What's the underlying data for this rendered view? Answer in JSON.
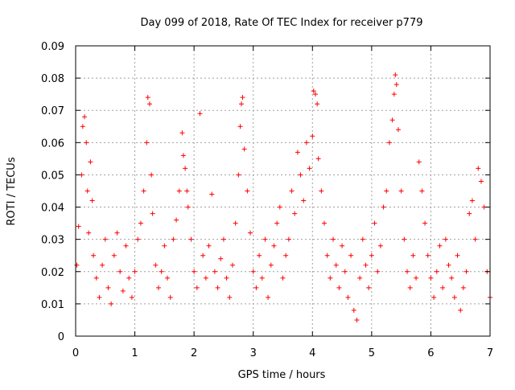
{
  "chart_data": {
    "type": "scatter",
    "title": "Day 099 of 2018, Rate Of TEC Index for receiver p779",
    "xlabel": "GPS time / hours",
    "ylabel": "ROTI / TECUs",
    "xlim": [
      0,
      7
    ],
    "ylim": [
      0,
      0.09
    ],
    "xticks": [
      0,
      1,
      2,
      3,
      4,
      5,
      6,
      7
    ],
    "xtick_labels": [
      "0",
      "1",
      "2",
      "3",
      "4",
      "5",
      "6",
      "7"
    ],
    "yticks": [
      0,
      0.01,
      0.02,
      0.03,
      0.04,
      0.05,
      0.06,
      0.07,
      0.08,
      0.09
    ],
    "ytick_labels": [
      "0",
      "0.01",
      "0.02",
      "0.03",
      "0.04",
      "0.05",
      "0.06",
      "0.07",
      "0.08",
      "0.09"
    ],
    "grid": true,
    "marker": "plus",
    "color": "#ff0000",
    "series": [
      {
        "name": "ROTI",
        "x": [
          0.02,
          0.05,
          0.1,
          0.12,
          0.15,
          0.18,
          0.2,
          0.22,
          0.25,
          0.28,
          0.3,
          0.35,
          0.4,
          0.45,
          0.5,
          0.55,
          0.6,
          0.65,
          0.7,
          0.75,
          0.8,
          0.85,
          0.9,
          0.95,
          1.0,
          1.05,
          1.1,
          1.15,
          1.2,
          1.22,
          1.25,
          1.28,
          1.3,
          1.35,
          1.4,
          1.45,
          1.5,
          1.55,
          1.6,
          1.65,
          1.7,
          1.75,
          1.8,
          1.82,
          1.85,
          1.88,
          1.9,
          1.95,
          2.0,
          2.05,
          2.1,
          2.15,
          2.2,
          2.25,
          2.3,
          2.35,
          2.4,
          2.45,
          2.5,
          2.55,
          2.6,
          2.65,
          2.7,
          2.75,
          2.78,
          2.8,
          2.82,
          2.85,
          2.9,
          2.95,
          3.0,
          3.05,
          3.1,
          3.15,
          3.2,
          3.25,
          3.3,
          3.35,
          3.4,
          3.45,
          3.5,
          3.55,
          3.6,
          3.65,
          3.7,
          3.75,
          3.8,
          3.85,
          3.9,
          3.95,
          4.0,
          4.02,
          4.05,
          4.08,
          4.1,
          4.15,
          4.2,
          4.25,
          4.3,
          4.35,
          4.4,
          4.45,
          4.5,
          4.55,
          4.6,
          4.65,
          4.7,
          4.75,
          4.8,
          4.85,
          4.9,
          4.95,
          5.0,
          5.05,
          5.1,
          5.15,
          5.2,
          5.25,
          5.3,
          5.35,
          5.38,
          5.4,
          5.42,
          5.45,
          5.5,
          5.55,
          5.6,
          5.65,
          5.7,
          5.75,
          5.8,
          5.85,
          5.9,
          5.95,
          6.0,
          6.05,
          6.1,
          6.15,
          6.2,
          6.25,
          6.3,
          6.35,
          6.4,
          6.45,
          6.5,
          6.55,
          6.6,
          6.65,
          6.7,
          6.75,
          6.8,
          6.85,
          6.9,
          6.95,
          7.0
        ],
        "y": [
          0.022,
          0.034,
          0.05,
          0.065,
          0.068,
          0.06,
          0.045,
          0.032,
          0.054,
          0.042,
          0.025,
          0.018,
          0.012,
          0.022,
          0.03,
          0.015,
          0.01,
          0.025,
          0.032,
          0.02,
          0.014,
          0.028,
          0.018,
          0.012,
          0.02,
          0.03,
          0.035,
          0.045,
          0.06,
          0.074,
          0.072,
          0.05,
          0.038,
          0.022,
          0.015,
          0.02,
          0.028,
          0.018,
          0.012,
          0.03,
          0.036,
          0.045,
          0.063,
          0.056,
          0.052,
          0.045,
          0.04,
          0.03,
          0.02,
          0.015,
          0.069,
          0.025,
          0.018,
          0.028,
          0.044,
          0.02,
          0.015,
          0.024,
          0.03,
          0.018,
          0.012,
          0.022,
          0.035,
          0.05,
          0.065,
          0.072,
          0.074,
          0.058,
          0.045,
          0.032,
          0.02,
          0.015,
          0.025,
          0.018,
          0.03,
          0.012,
          0.022,
          0.028,
          0.035,
          0.04,
          0.018,
          0.025,
          0.03,
          0.045,
          0.038,
          0.057,
          0.05,
          0.042,
          0.06,
          0.052,
          0.062,
          0.076,
          0.075,
          0.072,
          0.055,
          0.045,
          0.035,
          0.025,
          0.018,
          0.03,
          0.022,
          0.015,
          0.028,
          0.02,
          0.012,
          0.025,
          0.008,
          0.005,
          0.018,
          0.03,
          0.022,
          0.015,
          0.025,
          0.035,
          0.02,
          0.028,
          0.04,
          0.045,
          0.06,
          0.067,
          0.075,
          0.081,
          0.078,
          0.064,
          0.045,
          0.03,
          0.02,
          0.015,
          0.025,
          0.018,
          0.054,
          0.045,
          0.035,
          0.025,
          0.018,
          0.012,
          0.02,
          0.028,
          0.015,
          0.03,
          0.022,
          0.018,
          0.012,
          0.025,
          0.008,
          0.015,
          0.02,
          0.038,
          0.042,
          0.03,
          0.052,
          0.048,
          0.04,
          0.02,
          0.012
        ]
      }
    ]
  }
}
